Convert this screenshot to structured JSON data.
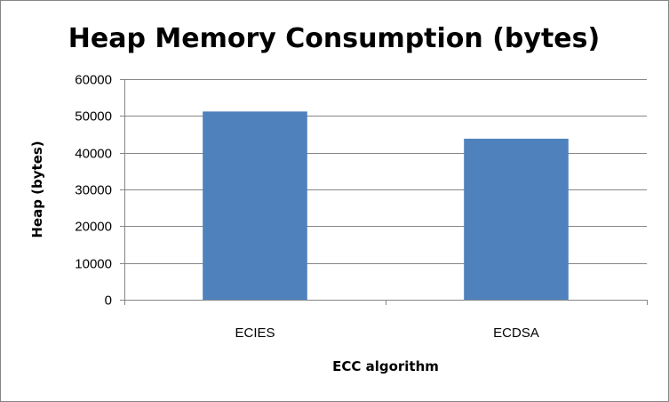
{
  "chart_data": {
    "type": "bar",
    "title": "Heap Memory Consumption (bytes)",
    "xlabel": "ECC algorithm",
    "ylabel": "Heap (bytes)",
    "categories": [
      "ECIES",
      "ECDSA"
    ],
    "values": [
      51200,
      43800
    ],
    "ylim": [
      0,
      60000
    ],
    "yticks": [
      "0",
      "10000",
      "20000",
      "30000",
      "40000",
      "50000",
      "60000"
    ],
    "grid": true,
    "legend": "none",
    "bar_color": "#4F81BD",
    "grid_color": "#868686",
    "axis_color": "#868686"
  }
}
